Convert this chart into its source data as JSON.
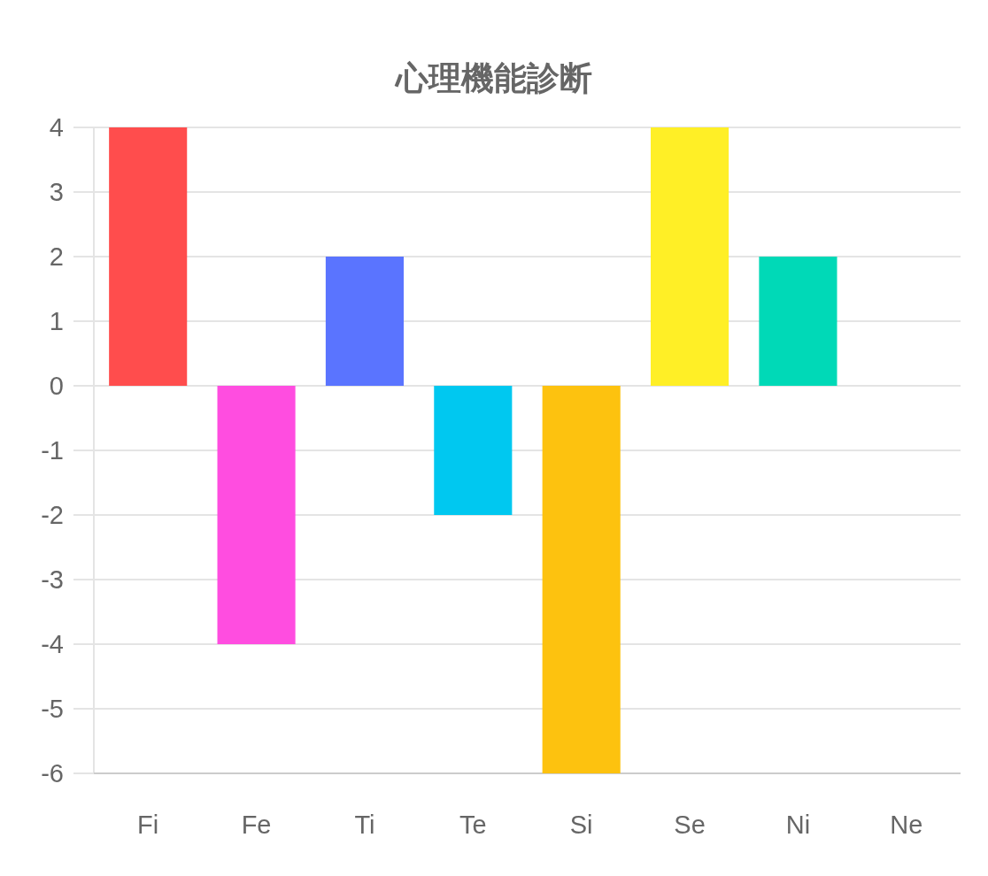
{
  "chart_data": {
    "type": "bar",
    "title": "心理機能診断",
    "categories": [
      "Fi",
      "Fe",
      "Ti",
      "Te",
      "Si",
      "Se",
      "Ni",
      "Ne"
    ],
    "values": [
      4,
      -4,
      2,
      -2,
      -6,
      4,
      2,
      0
    ],
    "colors": [
      "#ff4d4d",
      "#ff4de0",
      "#5a74ff",
      "#00c8f0",
      "#fdc20f",
      "#ffef26",
      "#00d9b7",
      null
    ],
    "ylim": [
      -6,
      4
    ],
    "yticks": [
      -6,
      -5,
      -4,
      -3,
      -2,
      -1,
      0,
      1,
      2,
      3,
      4
    ],
    "grid": "y"
  }
}
